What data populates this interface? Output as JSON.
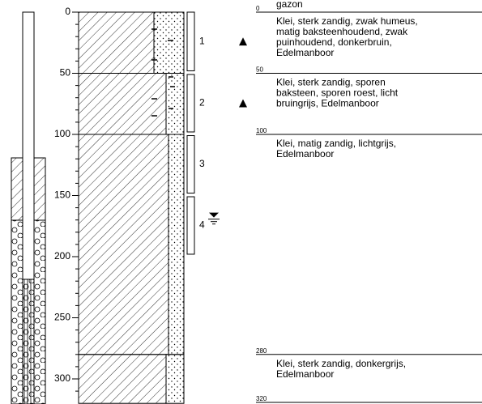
{
  "depth_axis": {
    "ticks": [
      0,
      50,
      100,
      150,
      200,
      250,
      300
    ]
  },
  "boundaries": [
    0,
    50,
    100,
    280,
    320
  ],
  "top_layer": "gazon",
  "layers": [
    {
      "description": [
        "Klei, sterk zandig, zwak humeus,",
        "matig baksteenhoudend, zwak",
        "puinhoudend, donkerbruin,",
        "Edelmanboor"
      ]
    },
    {
      "description": [
        "Klei, sterk zandig, sporen",
        "baksteen, sporen roest, licht",
        "bruingrijs, Edelmanboor"
      ]
    },
    {
      "description": [
        "Klei, matig zandig, lichtgrijs,",
        "Edelmanboor"
      ]
    },
    {
      "description": [
        "Klei, sterk zandig, donkergrijs,",
        "Edelmanboor"
      ]
    }
  ],
  "samples": [
    {
      "label": "1",
      "top": 0,
      "bottom": 48,
      "marker": true
    },
    {
      "label": "2",
      "top": 51,
      "bottom": 98,
      "marker": true
    },
    {
      "label": "3",
      "top": 101,
      "bottom": 148,
      "marker": false
    },
    {
      "label": "4",
      "top": 151,
      "bottom": 198,
      "marker": false
    }
  ],
  "groundwater": {
    "depth": 168
  }
}
